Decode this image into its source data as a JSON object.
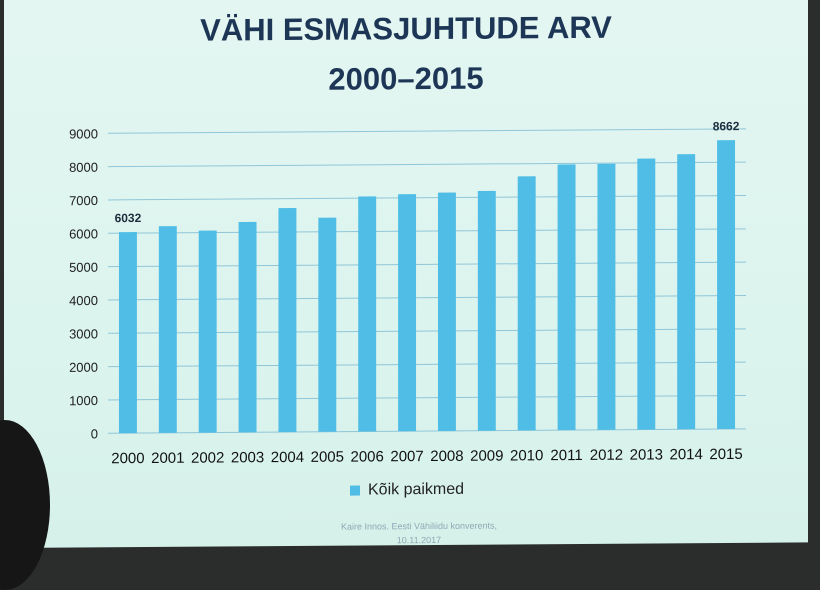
{
  "slide": {
    "title_line1": "VÄHI ESMASJUHTUDE ARV",
    "title_line2": "2000–2015",
    "footer_line1": "Kaire Innos. Eesti Vähiliidu konverents,",
    "footer_line2": "10.11.2017"
  },
  "chart_data": {
    "type": "bar",
    "title": "VÄHI ESMASJUHTUDE ARV 2000–2015",
    "categories": [
      "2000",
      "2001",
      "2002",
      "2003",
      "2004",
      "2005",
      "2006",
      "2007",
      "2008",
      "2009",
      "2010",
      "2011",
      "2012",
      "2013",
      "2014",
      "2015"
    ],
    "series": [
      {
        "name": "Kõik paikmed",
        "values": [
          6032,
          6200,
          6060,
          6310,
          6720,
          6420,
          7050,
          7110,
          7150,
          7190,
          7620,
          7970,
          7980,
          8130,
          8250,
          8662
        ]
      }
    ],
    "data_labels": [
      {
        "category": "2000",
        "text": "6032"
      },
      {
        "category": "2015",
        "text": "8662"
      }
    ],
    "ylim": [
      0,
      9000
    ],
    "yticks": [
      0,
      1000,
      2000,
      3000,
      4000,
      5000,
      6000,
      7000,
      8000,
      9000
    ],
    "grid": true,
    "legend_position": "bottom",
    "bar_color": "#4fbde5",
    "grid_color": "#8fc6d8",
    "xlabel": "",
    "ylabel": ""
  }
}
